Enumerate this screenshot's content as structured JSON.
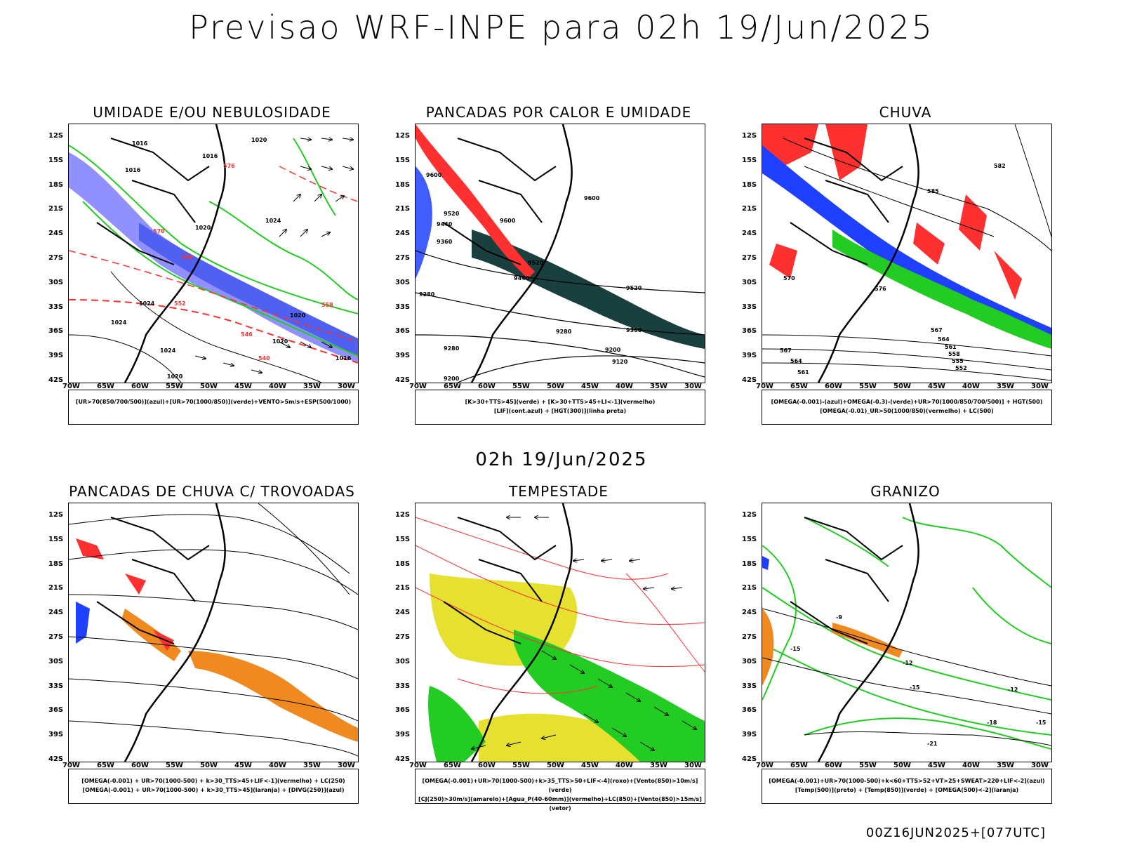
{
  "title": "Previsao WRF-INPE  para 02h 19/Jun/2025",
  "mid_title": "02h 19/Jun/2025",
  "footer": "00Z16JUN2025+[077UTC]",
  "axes": {
    "lat_labels": [
      "12S",
      "15S",
      "18S",
      "21S",
      "24S",
      "27S",
      "30S",
      "33S",
      "36S",
      "39S",
      "42S"
    ],
    "lon_labels": [
      "70W",
      "65W",
      "60W",
      "55W",
      "50W",
      "45W",
      "40W",
      "35W",
      "30W"
    ]
  },
  "panels": [
    {
      "title": "UMIDADE E/OU NEBULOSIDADE",
      "legend": [
        "[UR>70(850/700/500)](azul)+[UR>70(1000/850)](verde)+VENTO>5m/s+ESP(500/1000)"
      ],
      "contour_labels": [
        "1016",
        "1016",
        "1016",
        "1020",
        "1024",
        "1020",
        "1024",
        "1024",
        "1020",
        "1024",
        "1020",
        "1020",
        "1016",
        "576",
        "570",
        "564",
        "558",
        "552",
        "546",
        "540"
      ]
    },
    {
      "title": "PANCADAS POR CALOR E UMIDADE",
      "legend": [
        "[K>30+TTS>45](verde) + [K>30+TTS>45+LI<-1](vermelho)",
        "[LIF](cont.azul) + [HGT(300)](linha preta)"
      ],
      "contour_labels": [
        "9600",
        "9600",
        "9600",
        "9520",
        "9440",
        "9520",
        "9520",
        "9440",
        "9360",
        "9360",
        "9280",
        "9280",
        "9200",
        "9120",
        "9200",
        "9280"
      ]
    },
    {
      "title": "CHUVA",
      "legend": [
        "[OMEGA(-0.001)-(azul)+OMEGA(-0.3)-(verde)+UR>70(1000/850/700/500)] + HGT(500)",
        "[OMEGA(-0.01)_UR>50(1000/850)(vermelho) + LC(500)"
      ],
      "contour_labels": [
        "582",
        "585",
        "576",
        "570",
        "567",
        "564",
        "561",
        "558",
        "555",
        "552",
        "567",
        "564",
        "561"
      ]
    },
    {
      "title": "PANCADAS DE CHUVA C/ TROVOADAS",
      "legend": [
        "[OMEGA(-0.001) + UR>70(1000-500) + k>30_TTS>45+LIF<-1](vermelho) + LC(250)",
        "[OMEGA(-0.001) + UR>70(1000-500) + k>30_TTS>45](laranja) + [DIVG(250)](azul)"
      ],
      "contour_labels": []
    },
    {
      "title": "TEMPESTADE",
      "legend": [
        "[OMEGA(-0.001)+UR>70(1000-500)+k>35_TTS>50+LIF<-4](roxo)+[Vento(850)>10m/s](verde)",
        "[CJ(250)>30m/s](amarelo)+[Agua_P(40-60mm)](vermelho)+LC(850)+[Vento(850)>15m/s](vetor)"
      ],
      "contour_labels": []
    },
    {
      "title": "GRANIZO",
      "legend": [
        "[OMEGA(-0.001)+UR>70(1000-500)+k<60+TTS>52+VT>25+SWEAT>220+LIF<-2](azul)",
        "[Temp(500)](preto) + [Temp(850)](verde) + [OMEGA(500)<-2](laranja)"
      ],
      "contour_labels": [
        "-9",
        "-12",
        "-15",
        "-12",
        "-15",
        "-18",
        "-15",
        "-21"
      ]
    }
  ],
  "colors": {
    "red": "#ff3030",
    "green": "#22cc22",
    "blue": "#2040ff",
    "lavender": "#9090ff",
    "dark_teal": "#1a3f3f",
    "yellow": "#e6e030",
    "orange": "#f08a20"
  }
}
